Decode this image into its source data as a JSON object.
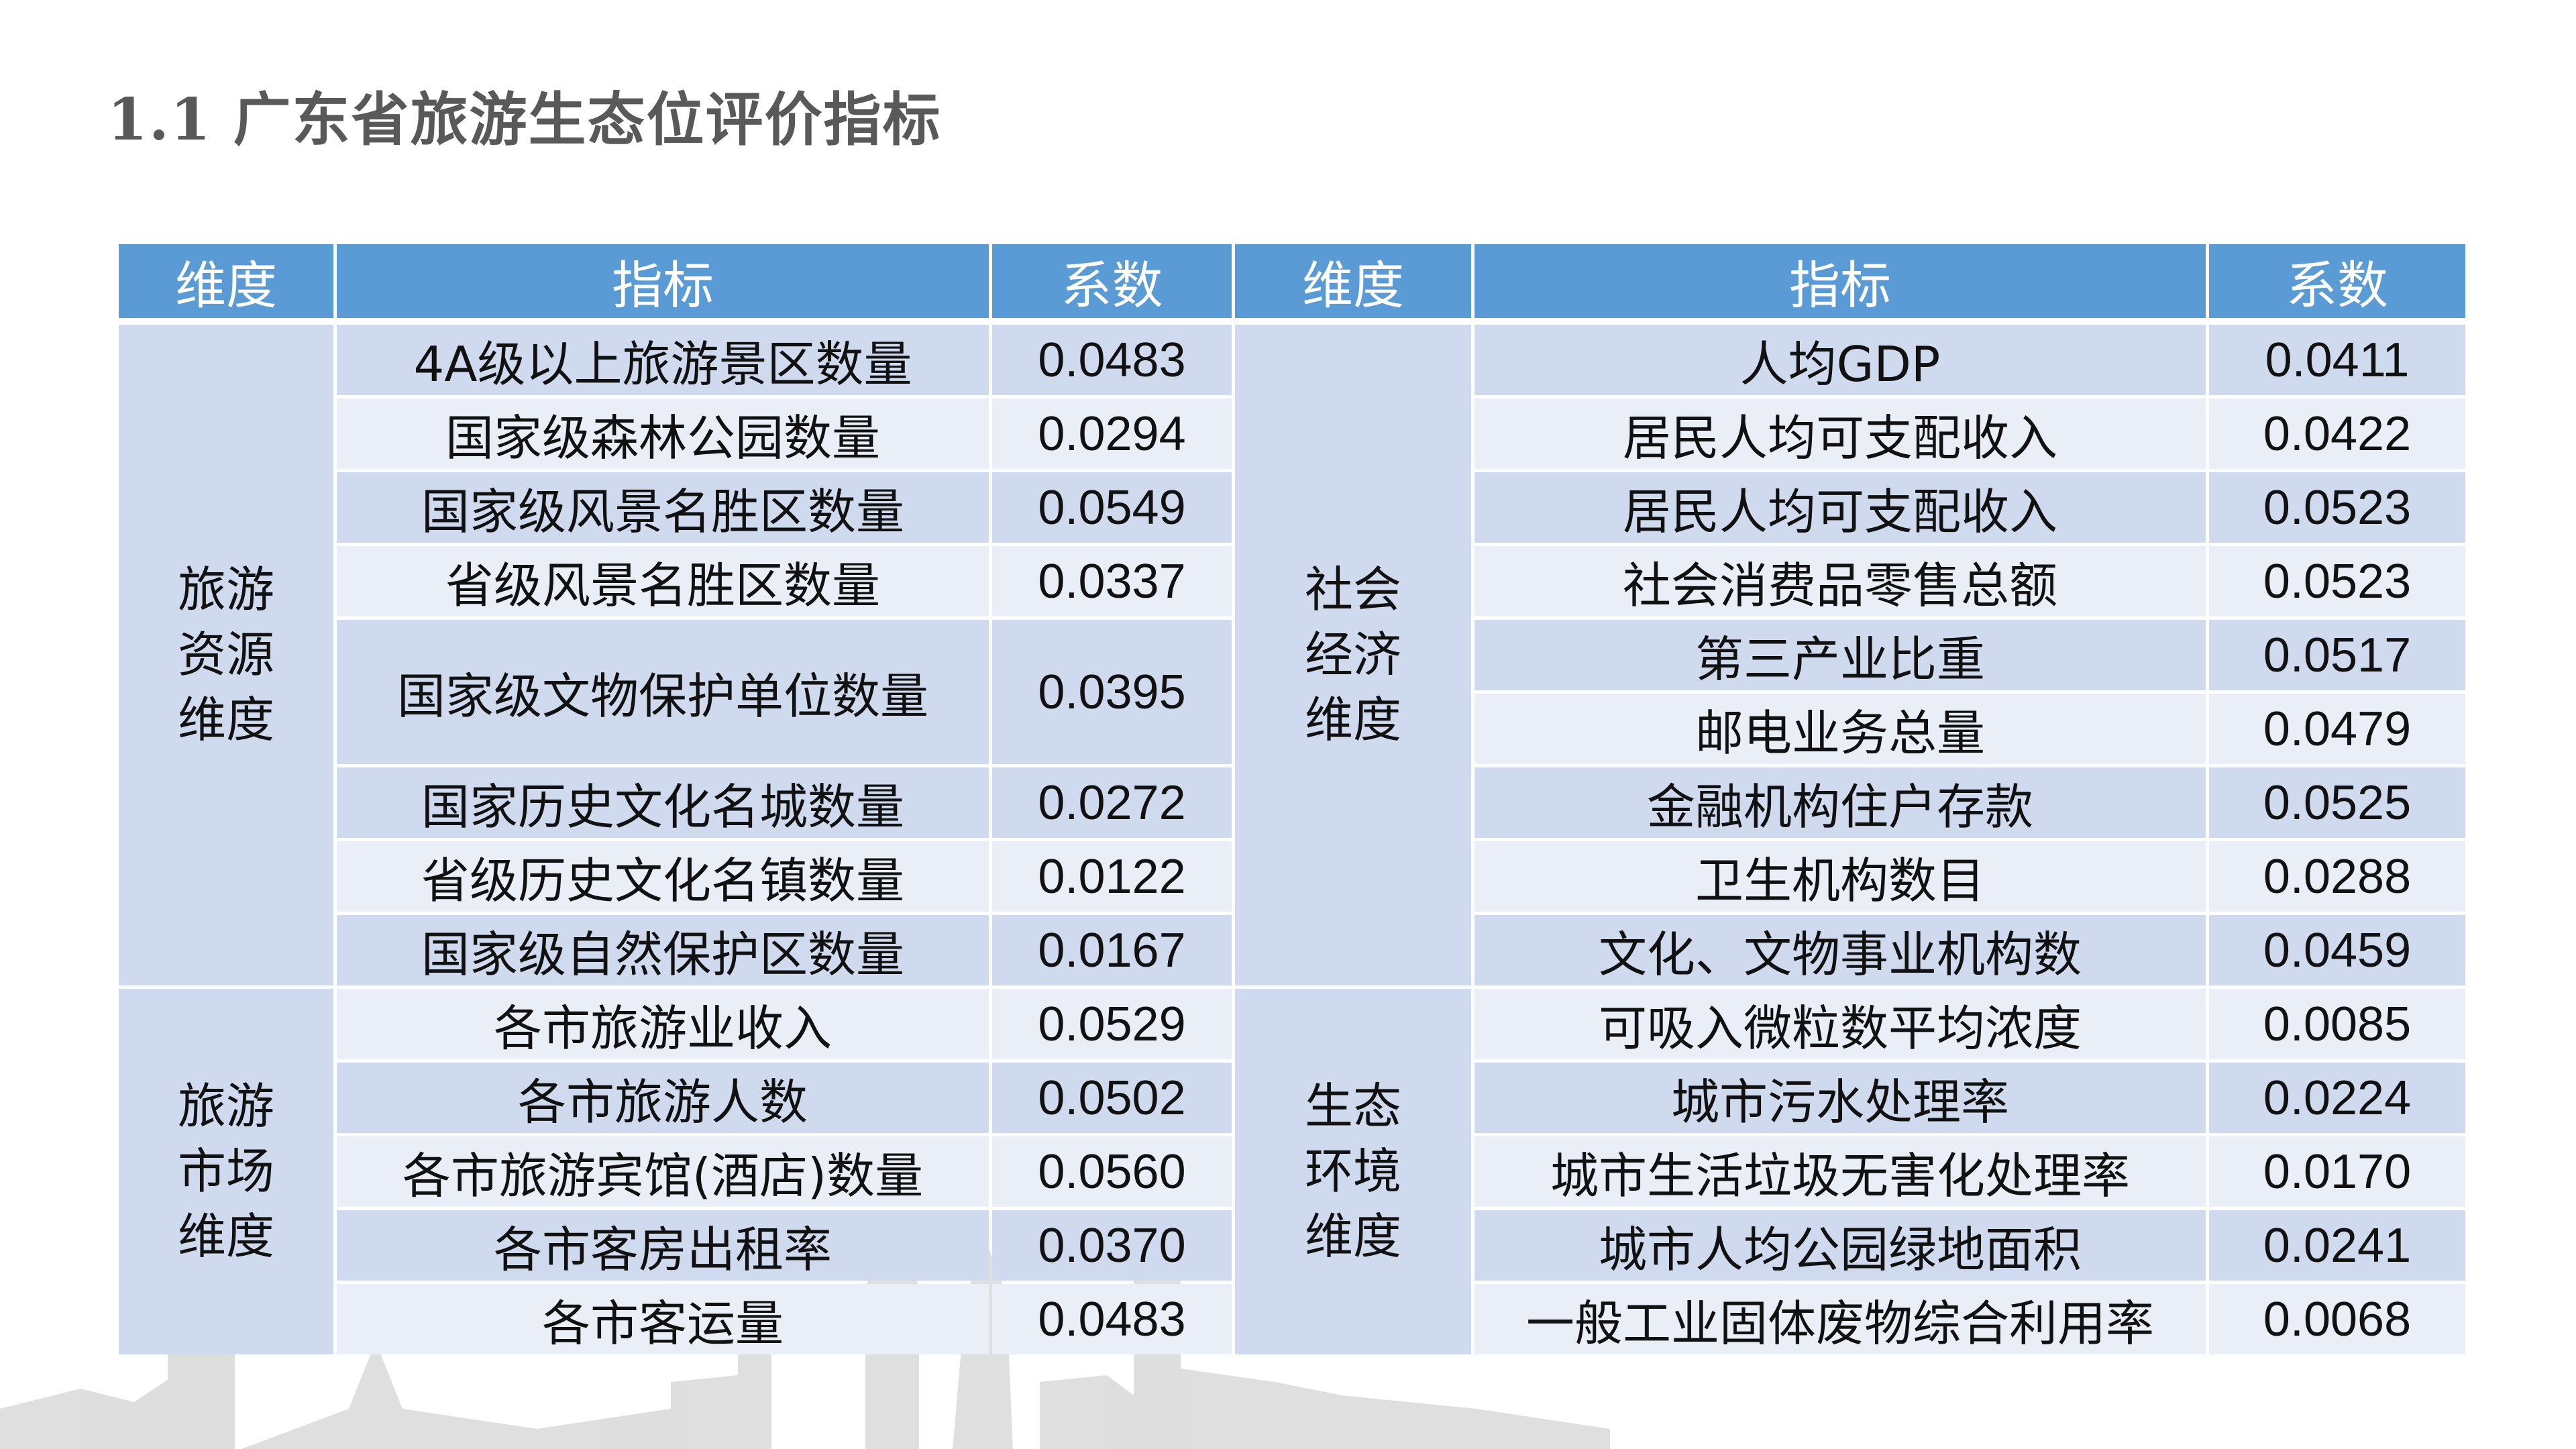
{
  "title": "1.1 广东省旅游生态位评价指标",
  "colors": {
    "header_bg": "#5B9BD5",
    "row_dark": "#CFDAEE",
    "row_light": "#E9EEF7",
    "title": "#595959"
  },
  "headers": {
    "dimension": "维度",
    "indicator": "指标",
    "coefficient": "系数"
  },
  "left_groups": [
    {
      "dimension": "旅游资源维度",
      "rows": [
        {
          "indicator": "4A级以上旅游景区数量",
          "coefficient": "0.0483"
        },
        {
          "indicator": "国家级森林公园数量",
          "coefficient": "0.0294"
        },
        {
          "indicator": "国家级风景名胜区数量",
          "coefficient": "0.0549"
        },
        {
          "indicator": "省级风景名胜区数量",
          "coefficient": "0.0337"
        },
        {
          "indicator": "国家级文物保护单位数量",
          "coefficient": "0.0395"
        },
        {
          "indicator": "国家历史文化名城数量",
          "coefficient": "0.0272"
        },
        {
          "indicator": "省级历史文化名镇数量",
          "coefficient": "0.0122"
        },
        {
          "indicator": "国家级自然保护区数量",
          "coefficient": "0.0167"
        }
      ]
    },
    {
      "dimension": "旅游市场维度",
      "rows": [
        {
          "indicator": "各市旅游业收入",
          "coefficient": "0.0529"
        },
        {
          "indicator": "各市旅游人数",
          "coefficient": "0.0502"
        },
        {
          "indicator": "各市旅游宾馆(酒店)数量",
          "coefficient": "0.0560"
        },
        {
          "indicator": "各市客房出租率",
          "coefficient": "0.0370"
        },
        {
          "indicator": "各市客运量",
          "coefficient": "0.0483"
        }
      ]
    }
  ],
  "right_groups": [
    {
      "dimension": "社会经济维度",
      "rows": [
        {
          "indicator": "人均GDP",
          "coefficient": "0.0411"
        },
        {
          "indicator": "居民人均可支配收入",
          "coefficient": "0.0422"
        },
        {
          "indicator": "居民人均可支配收入",
          "coefficient": "0.0523"
        },
        {
          "indicator": "社会消费品零售总额",
          "coefficient": "0.0523"
        },
        {
          "indicator": "第三产业比重",
          "coefficient": "0.0517"
        },
        {
          "indicator": "邮电业务总量",
          "coefficient": "0.0479"
        },
        {
          "indicator": "金融机构住户存款",
          "coefficient": "0.0525"
        },
        {
          "indicator": "卫生机构数目",
          "coefficient": "0.0288"
        },
        {
          "indicator": "文化、文物事业机构数",
          "coefficient": "0.0459"
        }
      ]
    },
    {
      "dimension": "生态环境维度",
      "rows": [
        {
          "indicator": "可吸入微粒数平均浓度",
          "coefficient": "0.0085"
        },
        {
          "indicator": "城市污水处理率",
          "coefficient": "0.0224"
        },
        {
          "indicator": "城市生活垃圾无害化处理率",
          "coefficient": "0.0170"
        },
        {
          "indicator": "城市人均公园绿地面积",
          "coefficient": "0.0241"
        },
        {
          "indicator": "一般工业固体废物综合利用率",
          "coefficient": "0.0068"
        }
      ]
    }
  ]
}
